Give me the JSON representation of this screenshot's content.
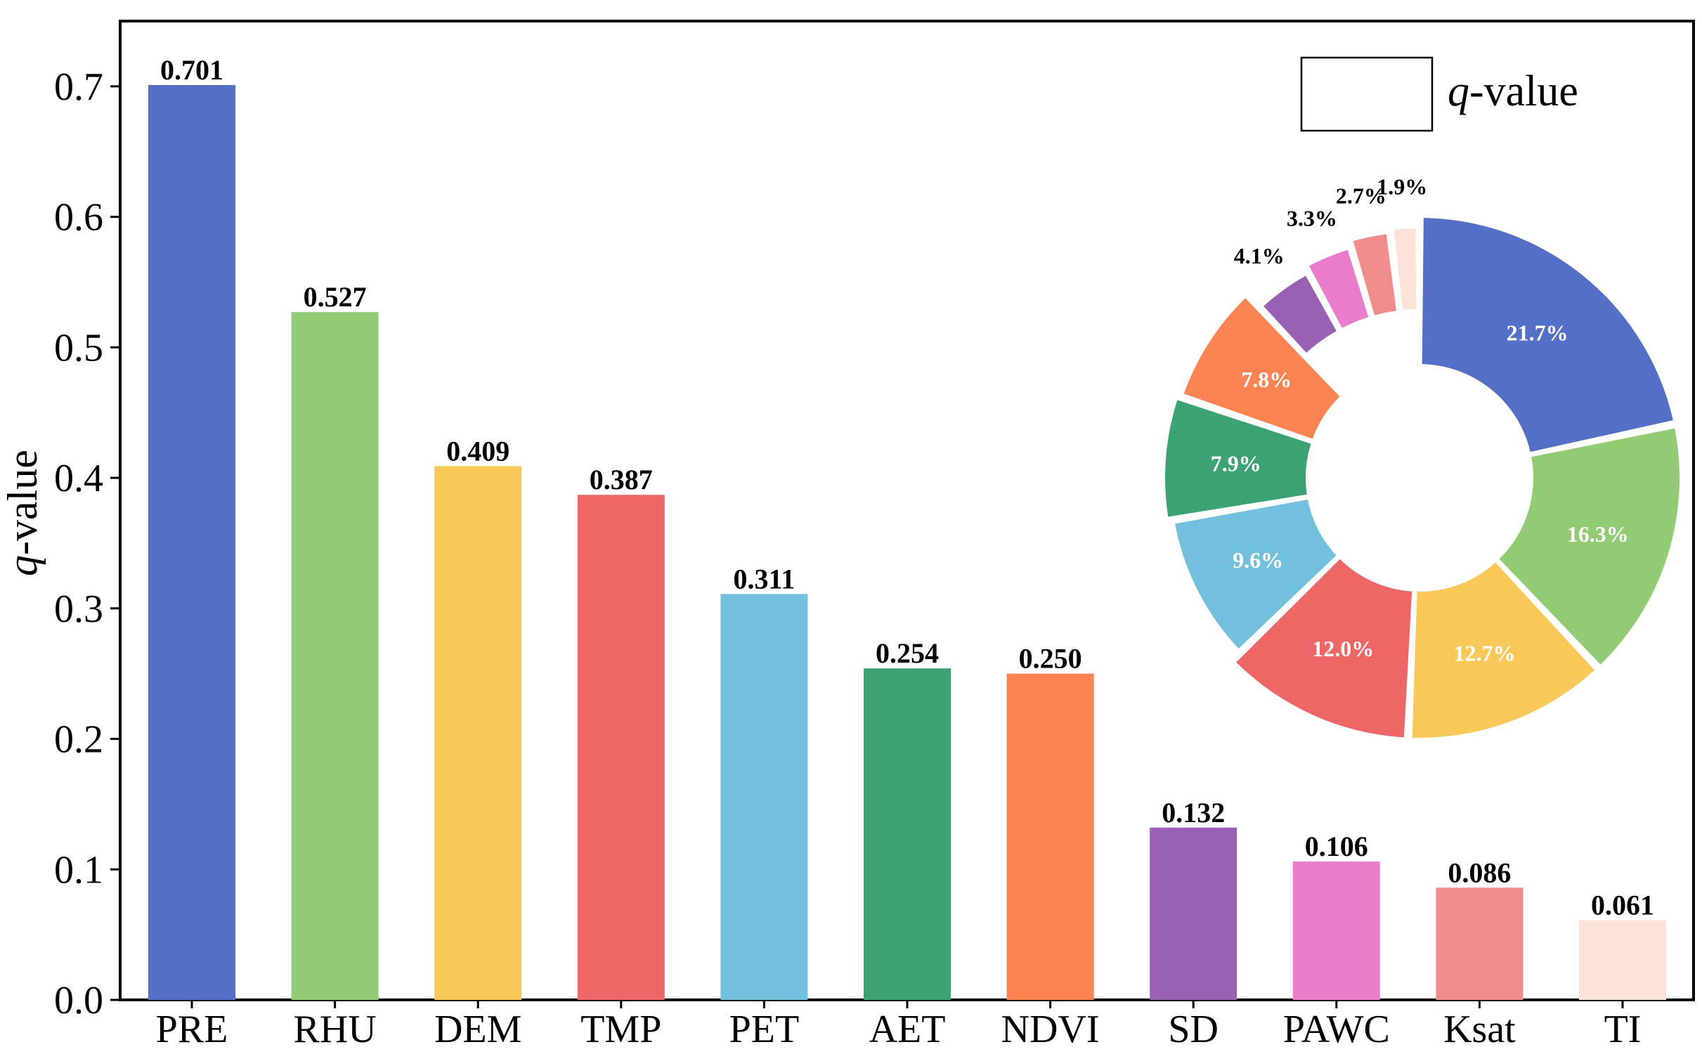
{
  "chart_data": {
    "type": "bar",
    "title": "",
    "xlabel": "",
    "ylabel": "q-value",
    "ylabel_italic_part": "q",
    "ylabel_rest": "-value",
    "ylim": [
      0.0,
      0.75
    ],
    "yticks": [
      "0.0",
      "0.1",
      "0.2",
      "0.3",
      "0.4",
      "0.5",
      "0.6",
      "0.7"
    ],
    "ytick_values": [
      0.0,
      0.1,
      0.2,
      0.3,
      0.4,
      0.5,
      0.6,
      0.7
    ],
    "categories": [
      "PRE",
      "RHU",
      "DEM",
      "TMP",
      "PET",
      "AET",
      "NDVI",
      "SD",
      "PAWC",
      "Ksat",
      "TI"
    ],
    "values": [
      0.701,
      0.527,
      0.409,
      0.387,
      0.311,
      0.254,
      0.25,
      0.132,
      0.106,
      0.086,
      0.061
    ],
    "value_labels": [
      "0.701",
      "0.527",
      "0.409",
      "0.387",
      "0.311",
      "0.254",
      "0.250",
      "0.132",
      "0.106",
      "0.086",
      "0.061"
    ],
    "colors": [
      "#5470C6",
      "#91CC75",
      "#FAC858",
      "#EE6666",
      "#73C0DE",
      "#3BA272",
      "#FC8452",
      "#9A60B4",
      "#EA7CCC",
      "#F08C8C",
      "#FDE3D7"
    ],
    "legend": {
      "italic_part": "q",
      "rest": "-value",
      "position": "top-right"
    },
    "inset_donut": {
      "type": "pie",
      "values": [
        21.7,
        16.3,
        12.7,
        12.0,
        9.6,
        7.9,
        7.8,
        4.1,
        3.3,
        2.7,
        1.9
      ],
      "labels": [
        "21.7%",
        "16.3%",
        "12.7%",
        "12.0%",
        "9.6%",
        "7.9%",
        "7.8%",
        "4.1%",
        "3.3%",
        "2.7%",
        "1.9%"
      ],
      "label_inside": [
        true,
        true,
        true,
        true,
        true,
        true,
        true,
        false,
        false,
        false,
        false
      ]
    }
  }
}
